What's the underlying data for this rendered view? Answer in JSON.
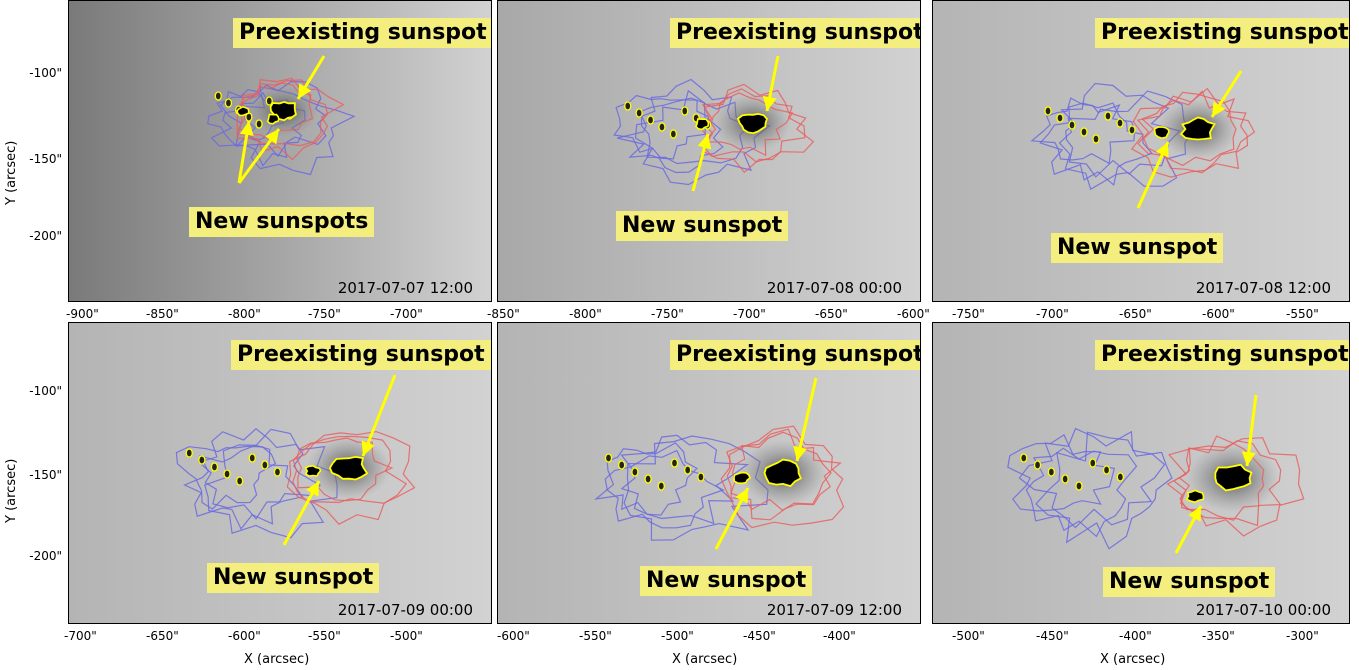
{
  "labels": {
    "preexisting": "Preexisting sunspot",
    "new_plural": "New sunspots",
    "new_singular": "New sunspot"
  },
  "axes": {
    "xlabel": "X (arcsec)",
    "ylabel": "Y (arcsec)",
    "yticks": [
      "-100\"",
      "-150\"",
      "-200\""
    ]
  },
  "panels": [
    {
      "timestamp": "2017-07-07 12:00",
      "xticks": [
        "-900\"",
        "-850\"",
        "-800\"",
        "-750\"",
        "-700\""
      ],
      "new_label": "New sunspots"
    },
    {
      "timestamp": "2017-07-08 00:00",
      "xticks": [
        "-850\"",
        "-800\"",
        "-750\"",
        "-700\"",
        "-650\"",
        "-600\""
      ],
      "new_label": "New sunspot"
    },
    {
      "timestamp": "2017-07-08 12:00",
      "xticks": [
        "-750\"",
        "-700\"",
        "-650\"",
        "-600\"",
        "-550\""
      ],
      "new_label": "New sunspot"
    },
    {
      "timestamp": "2017-07-09 00:00",
      "xticks": [
        "-700\"",
        "-650\"",
        "-600\"",
        "-550\"",
        "-500\""
      ],
      "new_label": "New sunspot"
    },
    {
      "timestamp": "2017-07-09 12:00",
      "xticks": [
        "-600\"",
        "-550\"",
        "-500\"",
        "-450\"",
        "-400\""
      ],
      "new_label": "New sunspot"
    },
    {
      "timestamp": "2017-07-10 00:00",
      "xticks": [
        "-500\"",
        "-450\"",
        "-400\"",
        "-350\"",
        "-300\""
      ],
      "new_label": "New sunspot"
    }
  ],
  "colors": {
    "label_bg": "#f3ee7d",
    "arrow": "#ffff00",
    "red_contour": "#e86060",
    "blue_contour": "#6a6ae0"
  }
}
